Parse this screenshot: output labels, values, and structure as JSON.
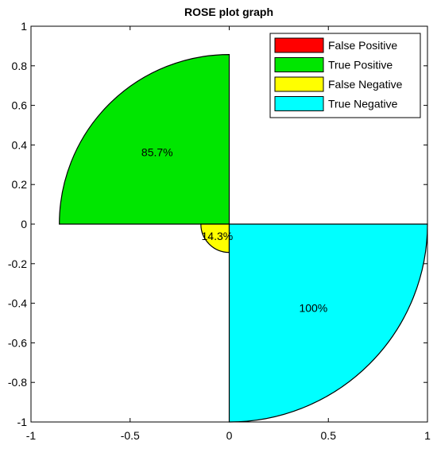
{
  "chart_data": {
    "type": "rose",
    "title": "ROSE plot graph",
    "xlabel": "",
    "ylabel": "",
    "xlim": [
      -1,
      1
    ],
    "ylim": [
      -1,
      1
    ],
    "x_ticks": [
      "-1",
      "-0.5",
      "0",
      "0.5",
      "1"
    ],
    "y_ticks": [
      "1",
      "0.8",
      "0.6",
      "0.4",
      "0.2",
      "0",
      "-0.2",
      "-0.4",
      "-0.6",
      "-0.8",
      "-1"
    ],
    "grid": false,
    "legend_position": "top-right",
    "series": [
      {
        "name": "False Positive",
        "value": 0,
        "label": "",
        "quadrant": "top-right",
        "color": "#ff0000"
      },
      {
        "name": "True Positive",
        "value": 0.857,
        "label": "85.7%",
        "quadrant": "top-left",
        "color": "#00e600"
      },
      {
        "name": "False Negative",
        "value": 0.143,
        "label": "14.3%",
        "quadrant": "bottom-left",
        "color": "#ffff00"
      },
      {
        "name": "True Negative",
        "value": 1.0,
        "label": "100%",
        "quadrant": "bottom-right",
        "color": "#00ffff"
      }
    ]
  }
}
